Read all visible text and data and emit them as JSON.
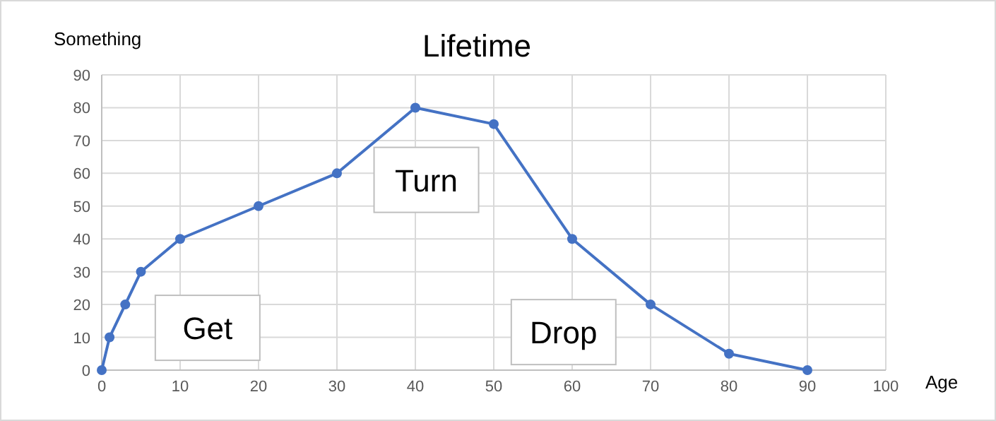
{
  "chart_data": {
    "type": "line",
    "title": "Lifetime",
    "xlabel": "Age",
    "ylabel": "Something",
    "x": [
      0,
      1,
      3,
      5,
      10,
      20,
      30,
      40,
      50,
      60,
      70,
      80,
      90
    ],
    "series": [
      {
        "color": "#4472c4",
        "values": [
          0,
          10,
          20,
          30,
          40,
          50,
          60,
          80,
          75,
          40,
          20,
          5,
          0
        ]
      }
    ],
    "xlim": [
      0,
      100
    ],
    "xticks": [
      0,
      10,
      20,
      30,
      40,
      50,
      60,
      70,
      80,
      90,
      100
    ],
    "ylim": [
      0,
      90
    ],
    "yticks": [
      0,
      10,
      20,
      30,
      40,
      50,
      60,
      70,
      80,
      90
    ],
    "grid": true,
    "marker": "circle",
    "line_style": "solid",
    "annotations": [
      "Get",
      "Turn",
      "Drop"
    ]
  }
}
